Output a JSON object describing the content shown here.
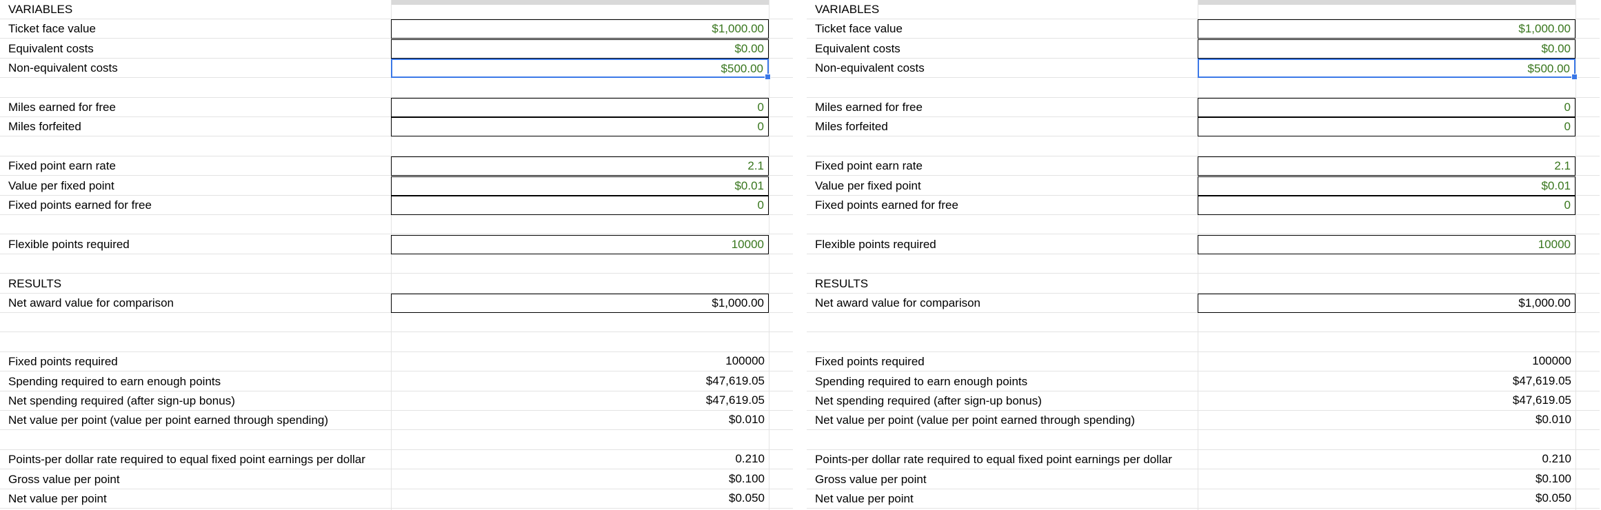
{
  "sheets": [
    {
      "rows": [
        {
          "label": "VARIABLES",
          "value": "",
          "boxed": false,
          "green": false
        },
        {
          "label": "Ticket face value",
          "value": "$1,000.00",
          "boxed": true,
          "green": true
        },
        {
          "label": "Equivalent costs",
          "value": "$0.00",
          "boxed": true,
          "green": true
        },
        {
          "label": "Non-equivalent costs",
          "value": "$500.00",
          "boxed": true,
          "green": true,
          "selected": true
        },
        {
          "label": "",
          "value": "",
          "boxed": false,
          "green": false
        },
        {
          "label": "Miles earned for free",
          "value": "0",
          "boxed": true,
          "green": true
        },
        {
          "label": "Miles forfeited",
          "value": "0",
          "boxed": true,
          "green": true
        },
        {
          "label": "",
          "value": "",
          "boxed": false,
          "green": false
        },
        {
          "label": "Fixed point earn rate",
          "value": "2.1",
          "boxed": true,
          "green": true
        },
        {
          "label": "Value per fixed point",
          "value": "$0.01",
          "boxed": true,
          "green": true
        },
        {
          "label": "Fixed points earned for free",
          "value": "0",
          "boxed": true,
          "green": true
        },
        {
          "label": "",
          "value": "",
          "boxed": false,
          "green": false
        },
        {
          "label": "Flexible points required",
          "value": "10000",
          "boxed": true,
          "green": true
        },
        {
          "label": "",
          "value": "",
          "boxed": false,
          "green": false
        },
        {
          "label": "RESULTS",
          "value": "",
          "boxed": false,
          "green": false
        },
        {
          "label": "Net award value for comparison",
          "value": "$1,000.00",
          "boxed": true,
          "green": false
        },
        {
          "label": "",
          "value": "",
          "boxed": false,
          "green": false
        },
        {
          "label": "",
          "value": "",
          "boxed": false,
          "green": false
        },
        {
          "label": "Fixed points required",
          "value": "100000",
          "boxed": false,
          "green": false
        },
        {
          "label": "Spending required to earn enough points",
          "value": "$47,619.05",
          "boxed": false,
          "green": false
        },
        {
          "label": "Net spending required (after sign-up bonus)",
          "value": "$47,619.05",
          "boxed": false,
          "green": false
        },
        {
          "label": "Net value per point (value per point earned through spending)",
          "value": "$0.010",
          "boxed": false,
          "green": false
        },
        {
          "label": "",
          "value": "",
          "boxed": false,
          "green": false
        },
        {
          "label": "Points-per dollar rate required to equal fixed point earnings per dollar",
          "value": "0.210",
          "boxed": false,
          "green": false
        },
        {
          "label": "Gross value per point",
          "value": "$0.100",
          "boxed": false,
          "green": false
        },
        {
          "label": "Net value per point",
          "value": "$0.050",
          "boxed": false,
          "green": false
        }
      ]
    },
    {
      "rows": [
        {
          "label": "VARIABLES",
          "value": "",
          "boxed": false,
          "green": false
        },
        {
          "label": "Ticket face value",
          "value": "$1,000.00",
          "boxed": true,
          "green": true
        },
        {
          "label": "Equivalent costs",
          "value": "$0.00",
          "boxed": true,
          "green": true
        },
        {
          "label": "Non-equivalent costs",
          "value": "$500.00",
          "boxed": true,
          "green": true,
          "selected": true
        },
        {
          "label": "",
          "value": "",
          "boxed": false,
          "green": false
        },
        {
          "label": "Miles earned for free",
          "value": "0",
          "boxed": true,
          "green": true
        },
        {
          "label": "Miles forfeited",
          "value": "0",
          "boxed": true,
          "green": true
        },
        {
          "label": "",
          "value": "",
          "boxed": false,
          "green": false
        },
        {
          "label": "Fixed point earn rate",
          "value": "2.1",
          "boxed": true,
          "green": true
        },
        {
          "label": "Value per fixed point",
          "value": "$0.01",
          "boxed": true,
          "green": true
        },
        {
          "label": "Fixed points earned for free",
          "value": "0",
          "boxed": true,
          "green": true
        },
        {
          "label": "",
          "value": "",
          "boxed": false,
          "green": false
        },
        {
          "label": "Flexible points required",
          "value": "10000",
          "boxed": true,
          "green": true
        },
        {
          "label": "",
          "value": "",
          "boxed": false,
          "green": false
        },
        {
          "label": "RESULTS",
          "value": "",
          "boxed": false,
          "green": false
        },
        {
          "label": "Net award value for comparison",
          "value": "$1,000.00",
          "boxed": true,
          "green": false
        },
        {
          "label": "",
          "value": "",
          "boxed": false,
          "green": false
        },
        {
          "label": "",
          "value": "",
          "boxed": false,
          "green": false
        },
        {
          "label": "Fixed points required",
          "value": "100000",
          "boxed": false,
          "green": false
        },
        {
          "label": "Spending required to earn enough points",
          "value": "$47,619.05",
          "boxed": false,
          "green": false
        },
        {
          "label": "Net spending required (after sign-up bonus)",
          "value": "$47,619.05",
          "boxed": false,
          "green": false
        },
        {
          "label": "Net value per point (value per point earned through spending)",
          "value": "$0.010",
          "boxed": false,
          "green": false
        },
        {
          "label": "",
          "value": "",
          "boxed": false,
          "green": false
        },
        {
          "label": "Points-per dollar rate required to equal fixed point earnings per dollar",
          "value": "0.210",
          "boxed": false,
          "green": false
        },
        {
          "label": "Gross value per point",
          "value": "$0.100",
          "boxed": false,
          "green": false
        },
        {
          "label": "Net value per point",
          "value": "$0.050",
          "boxed": false,
          "green": false
        }
      ]
    }
  ],
  "colors": {
    "input_green": "#38761d",
    "selection_blue": "#3b78e7",
    "gridline": "#e3e3e3",
    "header_gray": "#d9d9d9"
  }
}
